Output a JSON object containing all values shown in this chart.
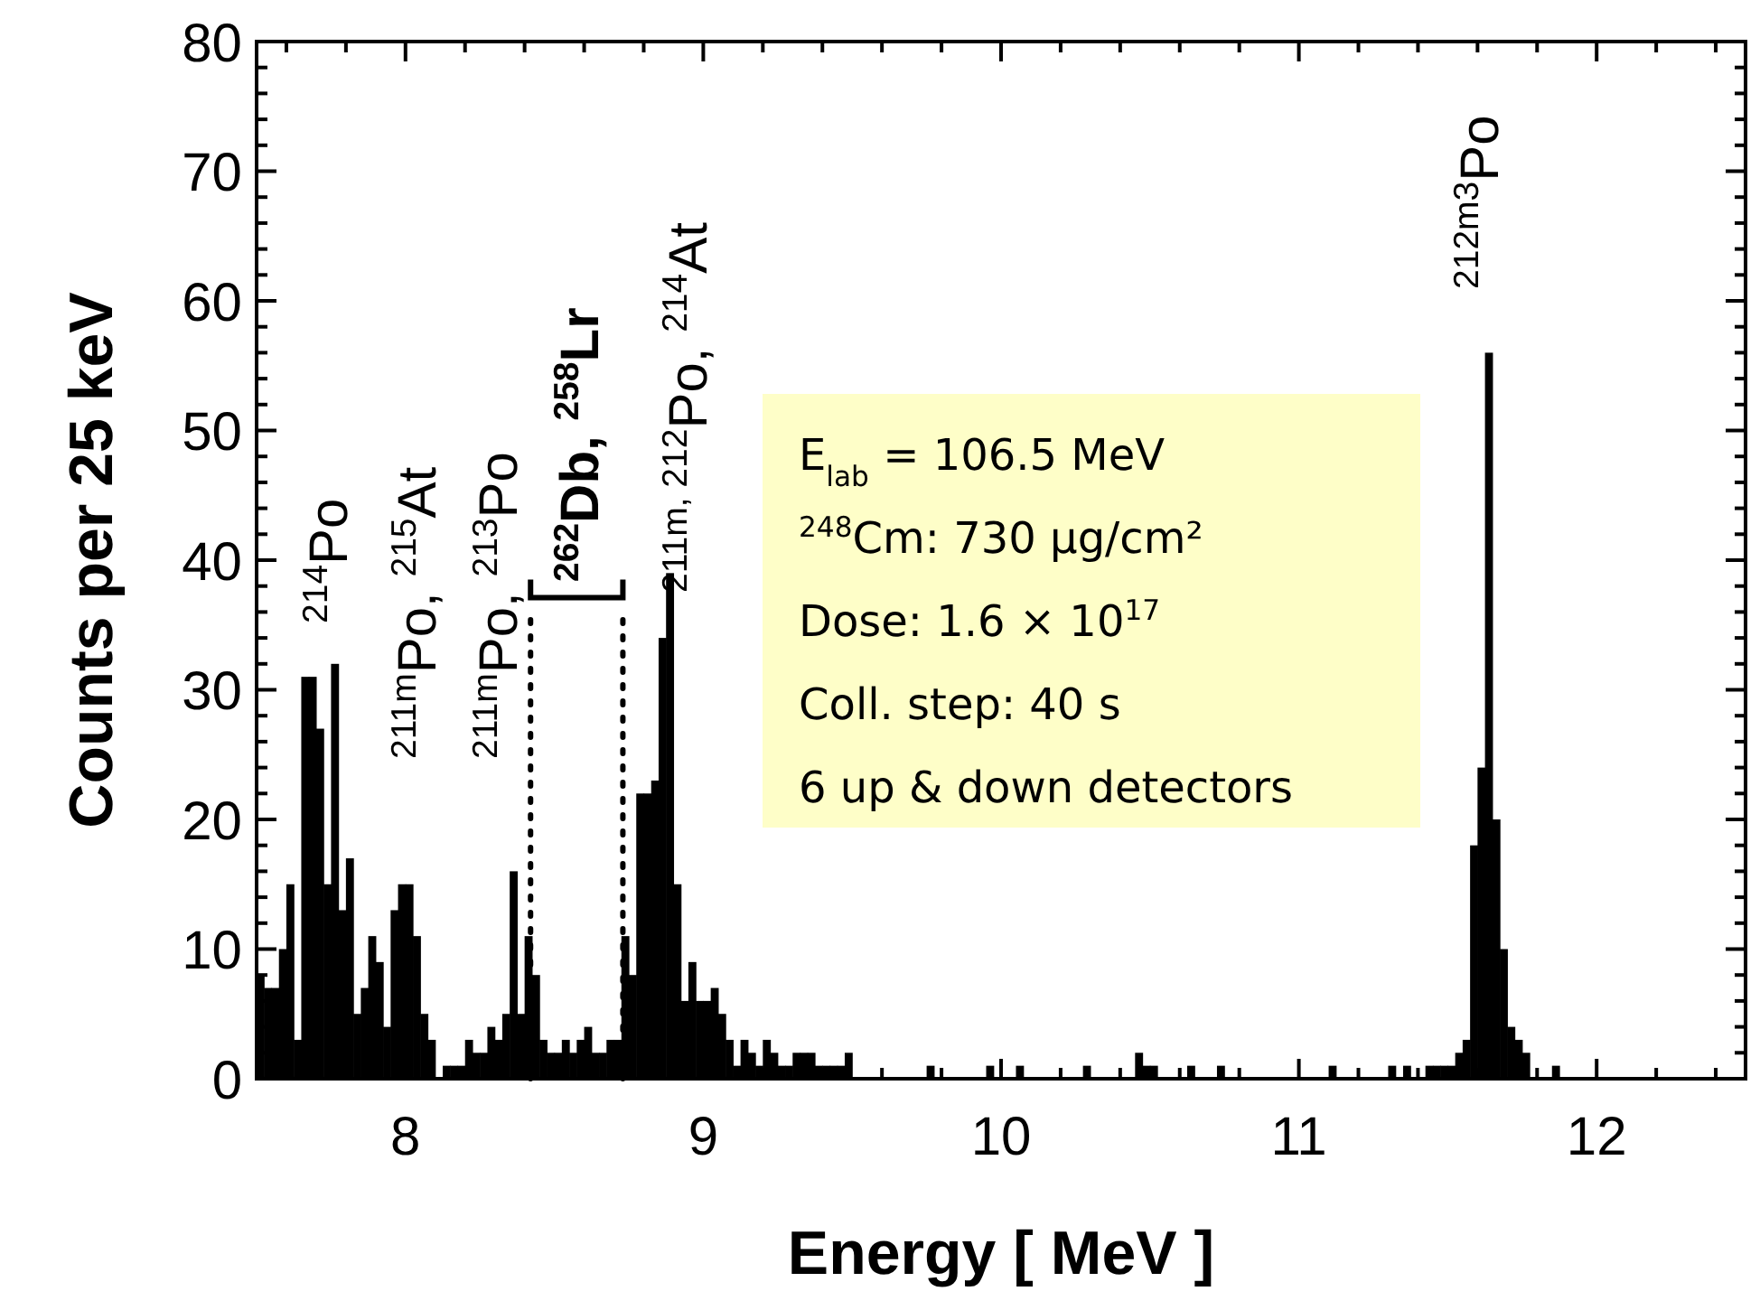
{
  "chart_data": {
    "type": "histogram",
    "xlabel": "Energy [ MeV ]",
    "ylabel": "Counts per 25 keV",
    "color": "#000000",
    "bins": [
      7.5,
      7.525,
      7.55,
      7.575,
      7.6,
      7.625,
      7.65,
      7.675,
      7.7,
      7.725,
      7.75,
      7.775,
      7.8,
      7.825,
      7.85,
      7.875,
      7.9,
      7.925,
      7.95,
      7.975,
      8,
      8.025,
      8.05,
      8.075,
      8.1,
      8.125,
      8.15,
      8.175,
      8.2,
      8.225,
      8.25,
      8.275,
      8.3,
      8.325,
      8.35,
      8.375,
      8.4,
      8.425,
      8.45,
      8.475,
      8.5,
      8.525,
      8.55,
      8.575,
      8.6,
      8.625,
      8.65,
      8.675,
      8.7,
      8.725,
      8.75,
      8.775,
      8.8,
      8.825,
      8.85,
      8.875,
      8.9,
      8.925,
      8.95,
      8.975,
      9,
      9.025,
      9.05,
      9.075,
      9.1,
      9.125,
      9.15,
      9.175,
      9.2,
      9.225,
      9.25,
      9.275,
      9.3,
      9.325,
      9.35,
      9.375,
      9.4,
      9.425,
      9.45,
      9.475,
      9.5,
      9.525,
      9.55,
      9.575,
      9.6,
      9.625,
      9.65,
      9.675,
      9.7,
      9.725,
      9.75,
      9.775,
      9.8,
      9.825,
      9.85,
      9.875,
      9.9,
      9.925,
      9.95,
      9.975,
      10,
      10.025,
      10.05,
      10.075,
      10.1,
      10.125,
      10.15,
      10.175,
      10.2,
      10.225,
      10.25,
      10.275,
      10.3,
      10.325,
      10.35,
      10.375,
      10.4,
      10.425,
      10.45,
      10.475,
      10.5,
      10.525,
      10.55,
      10.575,
      10.6,
      10.625,
      10.65,
      10.675,
      10.7,
      10.725,
      10.75,
      10.775,
      10.8,
      10.825,
      10.85,
      10.875,
      10.9,
      10.925,
      10.95,
      10.975,
      11,
      11.025,
      11.05,
      11.075,
      11.1,
      11.125,
      11.15,
      11.175,
      11.2,
      11.225,
      11.25,
      11.275,
      11.3,
      11.325,
      11.35,
      11.375,
      11.4,
      11.425,
      11.45,
      11.475,
      11.5,
      11.525,
      11.55,
      11.575,
      11.6,
      11.625,
      11.65,
      11.675,
      11.7,
      11.725,
      11.75,
      11.775,
      11.8,
      11.825,
      11.85,
      11.875,
      11.9,
      11.925,
      11.95,
      11.975,
      12,
      12.025,
      12.05,
      12.075,
      12.1,
      12.125,
      12.15,
      12.175,
      12.2,
      12.225,
      12.25,
      12.275,
      12.3,
      12.325,
      12.35,
      12.375,
      12.4,
      12.425,
      12.45,
      12.475,
      12.5
    ],
    "values": [
      8,
      7,
      7,
      10,
      15,
      3,
      31,
      31,
      27,
      15,
      32,
      13,
      17,
      5,
      7,
      11,
      9,
      4,
      13,
      15,
      15,
      11,
      5,
      3,
      0,
      1,
      1,
      1,
      3,
      2,
      2,
      4,
      3,
      5,
      16,
      5,
      11,
      8,
      3,
      2,
      2,
      3,
      2,
      3,
      4,
      2,
      2,
      3,
      3,
      11,
      8,
      22,
      22,
      23,
      34,
      39,
      15,
      6,
      9,
      6,
      6,
      7,
      5,
      3,
      1,
      3,
      2,
      1,
      3,
      2,
      1,
      1,
      2,
      2,
      2,
      1,
      1,
      1,
      1,
      2,
      0,
      0,
      0,
      0,
      0,
      0,
      0,
      0,
      0,
      0,
      1,
      0,
      0,
      0,
      0,
      0,
      0,
      0,
      1,
      0,
      0,
      0,
      1,
      0,
      0,
      0,
      0,
      0,
      0,
      0,
      0,
      1,
      0,
      0,
      0,
      0,
      0,
      0,
      2,
      1,
      1,
      0,
      0,
      0,
      0,
      1,
      0,
      0,
      0,
      1,
      0,
      0,
      0,
      0,
      0,
      0,
      0,
      0,
      0,
      0,
      0,
      0,
      0,
      0,
      1,
      0,
      0,
      0,
      0,
      0,
      0,
      0,
      1,
      0,
      1,
      0,
      0,
      1,
      1,
      1,
      1,
      2,
      3,
      18,
      24,
      56,
      20,
      10,
      4,
      3,
      2,
      0,
      0,
      0,
      1,
      0,
      0,
      0,
      0,
      0,
      0,
      0,
      0,
      0,
      0,
      0,
      0,
      0,
      0,
      0,
      0,
      0,
      0,
      0,
      0,
      0,
      0,
      0,
      0,
      0
    ],
    "xlim": [
      7.5,
      12.5
    ],
    "xticks": [
      {
        "value": 7.6,
        "label": null
      },
      {
        "value": 7.8,
        "label": null
      },
      8,
      {
        "value": 8.2,
        "label": null
      },
      {
        "value": 8.4,
        "label": null
      },
      {
        "value": 8.6,
        "label": null
      },
      {
        "value": 8.8,
        "label": null
      },
      9,
      {
        "value": 9.2,
        "label": null
      },
      {
        "value": 9.4,
        "label": null
      },
      {
        "value": 9.6,
        "label": null
      },
      {
        "value": 9.8,
        "label": null
      },
      10,
      {
        "value": 10.2,
        "label": null
      },
      {
        "value": 10.4,
        "label": null
      },
      {
        "value": 10.6,
        "label": null
      },
      {
        "value": 10.8,
        "label": null
      },
      11,
      {
        "value": 11.2,
        "label": null
      },
      {
        "value": 11.4,
        "label": null
      },
      {
        "value": 11.6,
        "label": null
      },
      {
        "value": 11.8,
        "label": null
      },
      12,
      {
        "value": 12.2,
        "label": null
      },
      {
        "value": 12.4,
        "label": null
      }
    ],
    "ylim": [
      0,
      80
    ],
    "yticks": [
      0,
      {
        "value": 2,
        "label": null
      },
      {
        "value": 4,
        "label": null
      },
      {
        "value": 6,
        "label": null
      },
      {
        "value": 8,
        "label": null
      },
      10,
      {
        "value": 12,
        "label": null
      },
      {
        "value": 14,
        "label": null
      },
      {
        "value": 16,
        "label": null
      },
      {
        "value": 18,
        "label": null
      },
      20,
      {
        "value": 22,
        "label": null
      },
      {
        "value": 24,
        "label": null
      },
      {
        "value": 26,
        "label": null
      },
      {
        "value": 28,
        "label": null
      },
      30,
      {
        "value": 32,
        "label": null
      },
      {
        "value": 34,
        "label": null
      },
      {
        "value": 36,
        "label": null
      },
      {
        "value": 38,
        "label": null
      },
      40,
      {
        "value": 42,
        "label": null
      },
      {
        "value": 44,
        "label": null
      },
      {
        "value": 46,
        "label": null
      },
      {
        "value": 48,
        "label": null
      },
      50,
      {
        "value": 52,
        "label": null
      },
      {
        "value": 54,
        "label": null
      },
      {
        "value": 56,
        "label": null
      },
      {
        "value": 58,
        "label": null
      },
      60,
      {
        "value": 62,
        "label": null
      },
      {
        "value": 64,
        "label": null
      },
      {
        "value": 66,
        "label": null
      },
      {
        "value": 68,
        "label": null
      },
      70,
      {
        "value": 72,
        "label": null
      },
      {
        "value": 74,
        "label": null
      },
      {
        "value": 76,
        "label": null
      },
      {
        "value": 78,
        "label": null
      },
      80
    ],
    "ref_lines": [
      {
        "axis": "x",
        "value": 8.42,
        "line_style": "dotted"
      },
      {
        "axis": "x",
        "value": 8.73,
        "line_style": "dotted"
      }
    ],
    "annotations": [
      "$^{214}$Po",
      "$^{211m}$Po, $^{215}$At",
      "$^{211m}$Po, $^{213}$Po",
      "$^{262}$Db, $^{258}$Lr",
      "$^{211m, 212}$Po, $^{214}$At",
      "$^{212m3}$Po",
      "E$_{lab}$ = 106.5 MeV",
      "$^{248}$Cm: 730 µg/cm²",
      "Dose: 1.6 × 10$^{17}$",
      "Coll. step: 40 s",
      "6 up & down detectors"
    ],
    "grid": false
  }
}
